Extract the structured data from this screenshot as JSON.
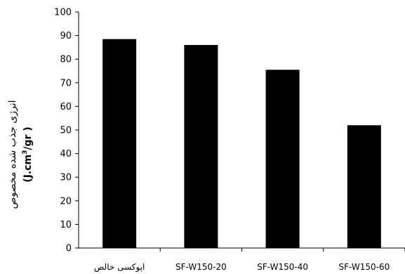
{
  "chart_data": {
    "type": "bar",
    "categories": [
      "اپوکسی خالص",
      "SF-W150-20",
      "SF-W150-40",
      "SF-W150-60"
    ],
    "values": [
      88.5,
      86,
      75.5,
      52
    ],
    "ylim": [
      0,
      100
    ],
    "yticks": [
      0,
      10,
      20,
      30,
      40,
      50,
      60,
      70,
      80,
      90,
      100
    ],
    "ylabel": "انرژی جذب شده مخصوص",
    "ylabel_unit": {
      "prefix": "(J.cm",
      "superscript": "3",
      "suffix": "/gr )"
    },
    "bar_color": "#000000",
    "grid": false,
    "legend": "none"
  }
}
